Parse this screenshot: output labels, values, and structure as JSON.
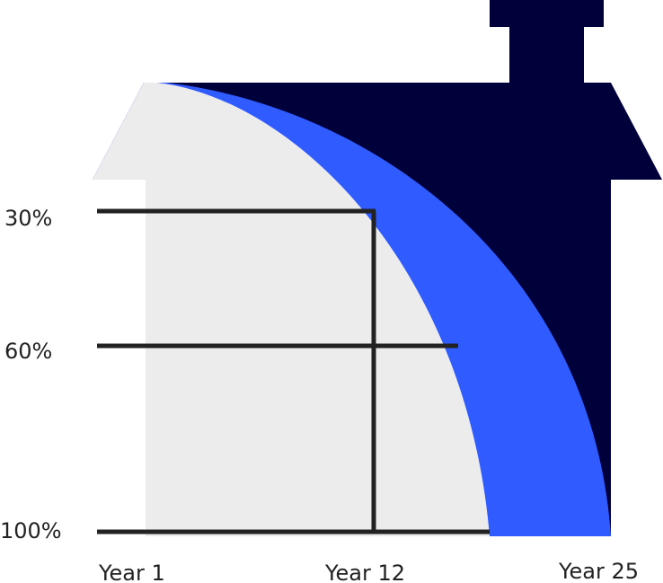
{
  "y_labels": [
    "30%",
    "60%",
    "100%"
  ],
  "x_labels": [
    "Year 1",
    "Year 12",
    "Year 25"
  ]
}
